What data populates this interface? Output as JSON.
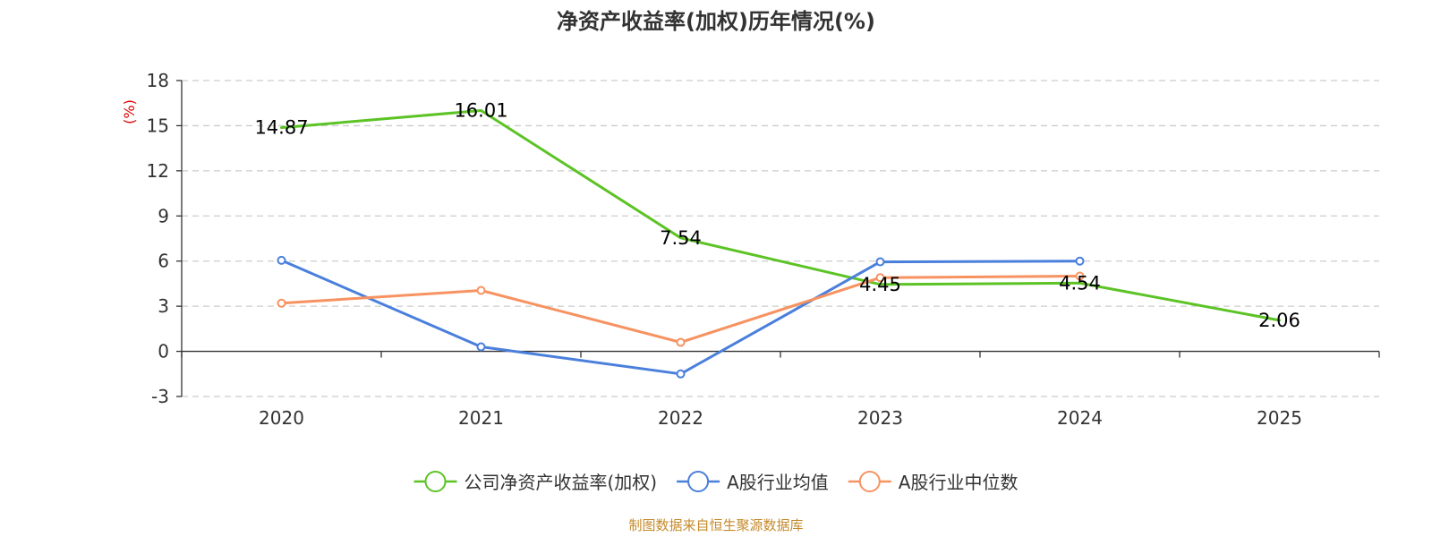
{
  "chart_data": {
    "type": "line",
    "title": "净资产收益率(加权)历年情况(%)",
    "unit_label": "(%)",
    "categories": [
      "2020",
      "2021",
      "2022",
      "2023",
      "2024",
      "2025"
    ],
    "yticks": [
      -3,
      0,
      3,
      6,
      9,
      12,
      15,
      18
    ],
    "ylim": [
      -3,
      18
    ],
    "grid": true,
    "legend_position": "bottom-center",
    "series": [
      {
        "name": "公司净资产收益率(加权)",
        "color": "#5cc325",
        "values": [
          14.87,
          16.01,
          7.54,
          4.45,
          4.54,
          2.06
        ],
        "labels": [
          "14.87",
          "16.01",
          "7.54",
          "4.45",
          "4.54",
          "2.06"
        ],
        "show_markers": false,
        "show_labels": true
      },
      {
        "name": "A股行业均值",
        "color": "#4a7fdc",
        "values": [
          6.05,
          0.3,
          -1.5,
          5.95,
          6.0,
          null
        ],
        "show_markers": true,
        "show_labels": false
      },
      {
        "name": "A股行业中位数",
        "color": "#f79261",
        "values": [
          3.2,
          4.05,
          0.6,
          4.9,
          5.0,
          null
        ],
        "show_markers": true,
        "show_labels": false
      }
    ]
  },
  "footer": {
    "source": "制图数据来自恒生聚源数据库"
  }
}
